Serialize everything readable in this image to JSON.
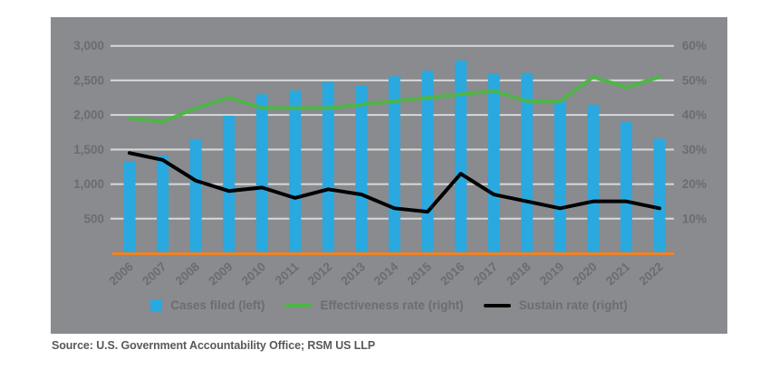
{
  "source": "Source: U.S. Government Accountability Office; RSM US LLP",
  "colors": {
    "panel_bg": "#898B8E",
    "bar_blue": "#29A9E0",
    "line_green": "#4FB549",
    "line_black": "#000000",
    "axis_orange": "#EF8326",
    "gridline": "#D8D9DA",
    "tick_label": "#6B6C6F",
    "legend_label": "#6C6D70",
    "source_text": "#58595B"
  },
  "chart_data": {
    "type": "combo-bar-line",
    "title": "",
    "categories": [
      "2006",
      "2007",
      "2008",
      "2009",
      "2010",
      "2011",
      "2012",
      "2013",
      "2014",
      "2015",
      "2016",
      "2017",
      "2018",
      "2019",
      "2020",
      "2021",
      "2022"
    ],
    "series": [
      {
        "name": "Cases filed (left)",
        "type": "bar",
        "axis": "left",
        "color": "#29A9E0",
        "values": [
          1327,
          1411,
          1652,
          1989,
          2299,
          2353,
          2475,
          2429,
          2561,
          2639,
          2789,
          2596,
          2607,
          2198,
          2149,
          1897,
          1658
        ]
      },
      {
        "name": "Effectiveness rate (right)",
        "type": "line",
        "axis": "right",
        "color": "#4FB549",
        "values": [
          39,
          38,
          42,
          45,
          42,
          42,
          42,
          43,
          44,
          45,
          46,
          47,
          44,
          44,
          51,
          48,
          51
        ]
      },
      {
        "name": "Sustain rate (right)",
        "type": "line",
        "axis": "right",
        "color": "#000000",
        "values": [
          29,
          27,
          21,
          18,
          19,
          16,
          18.5,
          17,
          13,
          12,
          23,
          17,
          15,
          13,
          15,
          15,
          13
        ]
      }
    ],
    "left_axis": {
      "min": 0,
      "max": 3000,
      "ticks": [
        500,
        1000,
        1500,
        2000,
        2500,
        3000
      ],
      "tick_labels": [
        "500",
        "1,000",
        "1,500",
        "2,000",
        "2,500",
        "3,000"
      ]
    },
    "right_axis": {
      "min": 0,
      "max": 60,
      "ticks": [
        10,
        20,
        30,
        40,
        50,
        60
      ],
      "tick_labels": [
        "10%",
        "20%",
        "30%",
        "40%",
        "50%",
        "60%"
      ]
    },
    "grid": true,
    "legend_position": "bottom"
  },
  "legend": {
    "items": [
      {
        "label": "Cases filed (left)",
        "swatch": "square",
        "color": "#29A9E0"
      },
      {
        "label": "Effectiveness rate (right)",
        "swatch": "line",
        "color": "#4FB549"
      },
      {
        "label": "Sustain rate (right)",
        "swatch": "line",
        "color": "#000000"
      }
    ]
  }
}
